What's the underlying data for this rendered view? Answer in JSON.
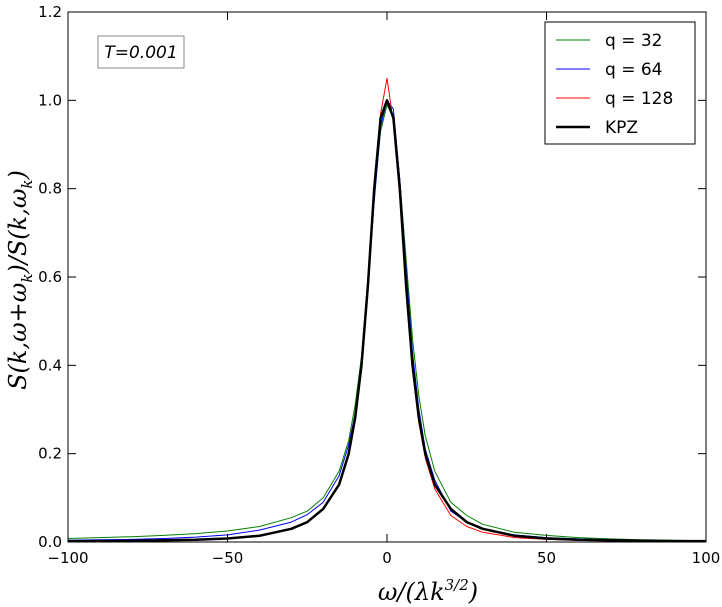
{
  "chart_data": {
    "type": "line",
    "title": "",
    "xlabel": "ω/(λk^{3/2})",
    "ylabel": "S(k,ω+ω_k)/S(k,ω_k)",
    "xlim": [
      -100,
      100
    ],
    "ylim": [
      0,
      1.2
    ],
    "x_ticks": [
      -100,
      -50,
      0,
      50,
      100
    ],
    "y_ticks": [
      0.0,
      0.2,
      0.4,
      0.6,
      0.8,
      1.0,
      1.2
    ],
    "x_tick_labels": [
      "−100",
      "−50",
      "0",
      "50",
      "100"
    ],
    "y_tick_labels": [
      "0.0",
      "0.2",
      "0.4",
      "0.6",
      "0.8",
      "1.0",
      "1.2"
    ],
    "grid": false,
    "legend_position": "top-right",
    "annotation": "T=0.001",
    "series": [
      {
        "name": "q = 32",
        "color": "#008000",
        "line_width": 1,
        "x": [
          -100,
          -90,
          -80,
          -70,
          -60,
          -50,
          -40,
          -30,
          -25,
          -20,
          -15,
          -12,
          -10,
          -8,
          -6,
          -4,
          -2,
          0,
          2,
          4,
          6,
          8,
          10,
          12,
          15,
          20,
          25,
          30,
          40,
          50,
          60,
          70,
          80,
          90,
          100
        ],
        "y": [
          0.008,
          0.01,
          0.012,
          0.015,
          0.019,
          0.025,
          0.035,
          0.055,
          0.07,
          0.1,
          0.16,
          0.23,
          0.31,
          0.42,
          0.6,
          0.78,
          0.93,
          0.99,
          0.96,
          0.82,
          0.64,
          0.46,
          0.33,
          0.24,
          0.16,
          0.09,
          0.06,
          0.04,
          0.022,
          0.015,
          0.01,
          0.007,
          0.005,
          0.004,
          0.003
        ]
      },
      {
        "name": "q = 64",
        "color": "#0000ff",
        "line_width": 1,
        "x": [
          -100,
          -90,
          -80,
          -70,
          -60,
          -50,
          -40,
          -30,
          -25,
          -20,
          -15,
          -12,
          -10,
          -8,
          -6,
          -4,
          -2,
          0,
          2,
          4,
          6,
          8,
          10,
          12,
          15,
          20,
          25,
          30,
          40,
          50,
          60,
          70,
          80,
          90,
          100
        ],
        "y": [
          0.004,
          0.005,
          0.006,
          0.008,
          0.011,
          0.016,
          0.027,
          0.045,
          0.062,
          0.09,
          0.15,
          0.22,
          0.29,
          0.4,
          0.58,
          0.77,
          0.94,
          1.0,
          0.98,
          0.82,
          0.62,
          0.43,
          0.3,
          0.21,
          0.14,
          0.07,
          0.045,
          0.03,
          0.016,
          0.01,
          0.007,
          0.005,
          0.004,
          0.003,
          0.003
        ]
      },
      {
        "name": "q = 128",
        "color": "#ff0000",
        "line_width": 1,
        "x": [
          -100,
          -90,
          -80,
          -70,
          -60,
          -50,
          -40,
          -30,
          -25,
          -20,
          -15,
          -12,
          -10,
          -8,
          -6,
          -4,
          -2,
          0,
          2,
          4,
          6,
          8,
          10,
          12,
          15,
          20,
          25,
          30,
          40,
          50,
          60,
          70,
          80,
          90,
          100
        ],
        "y": [
          0.002,
          0.002,
          0.003,
          0.004,
          0.005,
          0.008,
          0.014,
          0.03,
          0.045,
          0.075,
          0.13,
          0.2,
          0.28,
          0.4,
          0.58,
          0.8,
          0.97,
          1.05,
          0.95,
          0.78,
          0.58,
          0.4,
          0.27,
          0.19,
          0.12,
          0.06,
          0.035,
          0.022,
          0.01,
          0.006,
          0.004,
          0.003,
          0.002,
          0.002,
          0.002
        ]
      },
      {
        "name": "KPZ",
        "color": "#000000",
        "line_width": 2.5,
        "x": [
          -100,
          -90,
          -80,
          -70,
          -60,
          -50,
          -40,
          -30,
          -25,
          -20,
          -15,
          -12,
          -10,
          -8,
          -6,
          -4,
          -2,
          0,
          2,
          4,
          6,
          8,
          10,
          12,
          15,
          20,
          25,
          30,
          40,
          50,
          60,
          70,
          80,
          90,
          100
        ],
        "y": [
          0.002,
          0.002,
          0.003,
          0.004,
          0.005,
          0.008,
          0.014,
          0.03,
          0.045,
          0.075,
          0.13,
          0.2,
          0.28,
          0.4,
          0.58,
          0.8,
          0.96,
          1.0,
          0.96,
          0.8,
          0.58,
          0.4,
          0.28,
          0.2,
          0.13,
          0.075,
          0.045,
          0.03,
          0.014,
          0.008,
          0.005,
          0.004,
          0.003,
          0.002,
          0.002
        ]
      }
    ]
  }
}
